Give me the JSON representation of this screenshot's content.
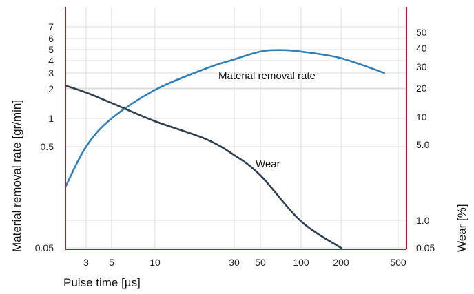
{
  "chart_data": {
    "type": "line",
    "xlabel": "Pulse time [µs]",
    "ylabel_left": "Material removal rate [gr/min]",
    "ylabel_right": "Wear [%]",
    "x_scale": "log",
    "x_ticks": [
      {
        "value": 3,
        "label": "3"
      },
      {
        "value": 5,
        "label": "5"
      },
      {
        "value": 10,
        "label": "10"
      },
      {
        "value": 30,
        "label": "30"
      },
      {
        "value": 50,
        "label": "50"
      },
      {
        "value": 100,
        "label": "100"
      },
      {
        "value": 200,
        "label": "200"
      },
      {
        "value": 500,
        "label": "500"
      }
    ],
    "y_left_ticks": [
      {
        "value": 0.05,
        "label": "0.05"
      },
      {
        "value": 0.5,
        "label": "0.5"
      },
      {
        "value": 1,
        "label": "1"
      },
      {
        "value": 2,
        "label": "2"
      },
      {
        "value": 3,
        "label": "3"
      },
      {
        "value": 4,
        "label": "4"
      },
      {
        "value": 5,
        "label": "5"
      },
      {
        "value": 6,
        "label": "6"
      },
      {
        "value": 7,
        "label": "7"
      }
    ],
    "y_right_ticks": [
      {
        "value": 0.05,
        "label": "0.05"
      },
      {
        "value": 1.0,
        "label": "1.0"
      },
      {
        "value": 5.0,
        "label": "5.0"
      },
      {
        "value": 10,
        "label": "10"
      },
      {
        "value": 20,
        "label": "20"
      },
      {
        "value": 30,
        "label": "30"
      },
      {
        "value": 40,
        "label": "40"
      },
      {
        "value": 50,
        "label": "50"
      }
    ],
    "grid": true,
    "series": [
      {
        "name": "Material removal rate",
        "color": "#2f80b8",
        "axis": "left",
        "x": [
          2,
          3,
          5,
          10,
          20,
          30,
          50,
          70,
          100,
          200,
          400
        ],
        "y": [
          0.2,
          0.5,
          1,
          1.95,
          3.3,
          4.1,
          4.8,
          4.95,
          4.8,
          4.2,
          3.0
        ]
      },
      {
        "name": "Wear",
        "color": "#2c3e50",
        "axis": "right",
        "x": [
          2,
          3,
          5,
          10,
          20,
          30,
          50,
          100,
          200
        ],
        "y": [
          21,
          18,
          14,
          9,
          5.8,
          4.0,
          2.6,
          0.9,
          0.05
        ]
      }
    ],
    "colors": {
      "axis": "#c8102e",
      "grid": "#dcdcdc"
    }
  }
}
